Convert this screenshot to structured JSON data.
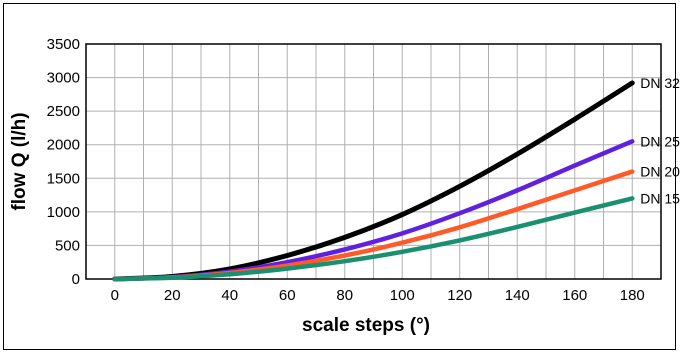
{
  "chart_data": {
    "type": "line",
    "title": "",
    "xlabel": "scale steps (°)",
    "ylabel": "flow Q (l/h)",
    "xlim": [
      -10,
      190
    ],
    "ylim": [
      0,
      3500
    ],
    "xticks": [
      0,
      20,
      40,
      60,
      80,
      100,
      120,
      140,
      160,
      180
    ],
    "x_minor_step": 10,
    "yticks": [
      0,
      500,
      1000,
      1500,
      2000,
      2500,
      3000,
      3500
    ],
    "grid": true,
    "legend": "labels at line ends",
    "x": [
      0,
      20,
      40,
      60,
      80,
      100,
      120,
      140,
      160,
      180
    ],
    "series": [
      {
        "name": "DN 32",
        "color": "#000000",
        "values": [
          0,
          38,
          150,
          350,
          620,
          960,
          1380,
          1860,
          2380,
          2920
        ]
      },
      {
        "name": "DN 25",
        "color": "#6020e0",
        "values": [
          0,
          28,
          110,
          250,
          440,
          680,
          980,
          1320,
          1690,
          2050
        ]
      },
      {
        "name": "DN 20",
        "color": "#ff5a28",
        "values": [
          0,
          24,
          90,
          200,
          350,
          540,
          770,
          1040,
          1320,
          1600
        ]
      },
      {
        "name": "DN 15",
        "color": "#1a9070",
        "values": [
          0,
          18,
          70,
          155,
          265,
          405,
          575,
          775,
          990,
          1200
        ]
      }
    ]
  }
}
